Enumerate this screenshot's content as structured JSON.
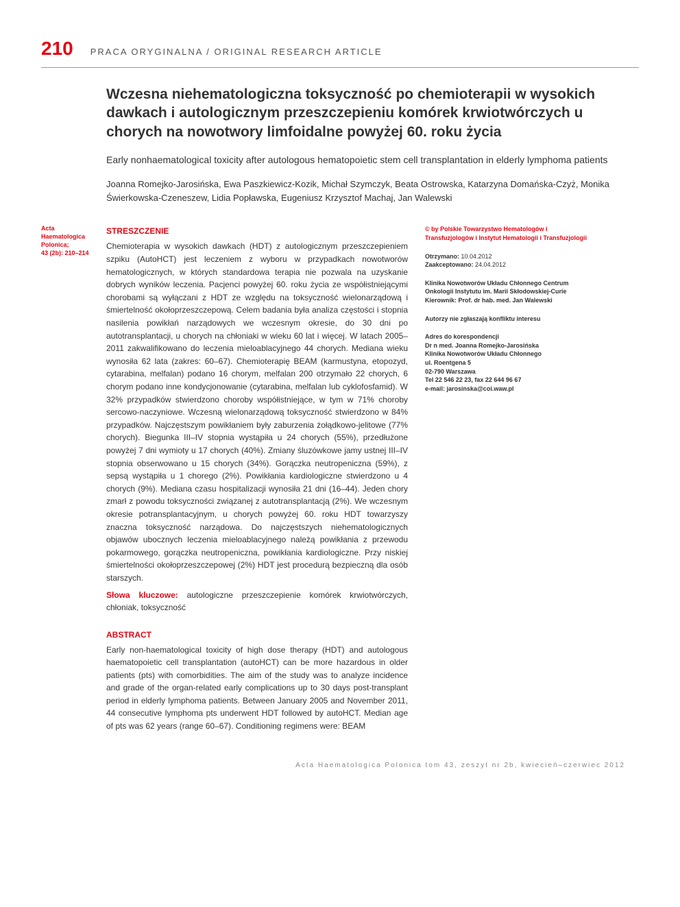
{
  "header": {
    "page_number": "210",
    "category": "PRACA ORYGINALNA / ORIGINAL RESEARCH ARTICLE"
  },
  "title_block": {
    "title": "Wczesna niehematologiczna toksyczność po chemioterapii w wysokich dawkach i autologicznym przeszczepieniu komórek krwiotwórczych u chorych na nowotwory limfoidalne powyżej 60. roku życia",
    "subtitle": "Early nonhaematological toxicity after autologous hematopoietic stem cell transplantation in elderly lymphoma patients",
    "authors": "Joanna Romejko-Jarosińska, Ewa Paszkiewicz-Kozik, Michał Szymczyk, Beata Ostrowska, Katarzyna Domańska-Czyż, Monika Świerkowska-Czeneszew, Lidia Popławska, Eugeniusz Krzysztof Machaj, Jan Walewski"
  },
  "left_meta": {
    "journal": "Acta Haematologica Polonica;",
    "ref": "43 (2b): 210–214"
  },
  "streszczenie": {
    "heading": "STRESZCZENIE",
    "body": "Chemioterapia w wysokich dawkach (HDT) z autologicznym przeszczepieniem szpiku (AutoHCT) jest leczeniem z wyboru w przypadkach nowotworów hematologicznych, w których standardowa terapia nie pozwala na uzyskanie dobrych wyników leczenia. Pacjenci powyżej 60. roku życia ze współistniejącymi chorobami są wyłączani z HDT ze względu na toksyczność wielonarządową i śmiertelność okołoprzeszczepową. Celem badania była analiza częstości i stopnia nasilenia powikłań narządowych we wczesnym okresie, do 30 dni po autotransplantacji, u chorych na chłoniaki w wieku 60 lat i więcej. W latach 2005–2011 zakwalifikowano do leczenia mieloablacyjnego 44 chorych. Mediana wieku wynosiła 62 lata (zakres: 60–67). Chemioterapię BEAM (karmustyna, etopozyd, cytarabina, melfalan) podano 16 chorym, melfalan 200 otrzymało 22 chorych, 6 chorym podano inne kondycjonowanie (cytarabina, melfalan lub cyklofosfamid). W 32% przypadków stwierdzono choroby współistniejące, w tym w 71% choroby sercowo-naczyniowe. Wczesną wielonarządową toksyczność stwierdzono w 84% przypadków. Najczęstszym powikłaniem były zaburzenia żołądkowo-jelitowe (77% chorych). Biegunka III–IV stopnia wystąpiła u 24 chorych (55%), przedłużone powyżej 7 dni wymioty u 17 chorych (40%). Zmiany śluzówkowe jamy ustnej III–IV stopnia obserwowano u 15 chorych (34%). Gorączka neutropeniczna (59%), z sepsą wystąpiła u 1 chorego (2%). Powikłania kardiologiczne stwierdzono u 4 chorych (9%). Mediana czasu hospitalizacji wynosiła 21 dni (16–44). Jeden chory zmarł z powodu toksyczności związanej z autotransplantacją (2%). We wczesnym okresie potransplantacyjnym, u chorych powyżej 60. roku HDT towarzyszy znaczna toksyczność narządowa. Do najczęstszych niehematologicznych objawów ubocznych leczenia mieloablacyjnego należą powikłania z przewodu pokarmowego, gorączka neutropeniczna, powikłania kardiologiczne. Przy niskiej śmiertelności okołoprzeszczepowej (2%) HDT jest procedurą bezpieczną dla osób starszych.",
    "keywords_label": "Słowa kluczowe:",
    "keywords": " autologiczne przeszczepienie komórek krwiotwórczych, chłoniak, toksyczność"
  },
  "abstract": {
    "heading": "ABSTRACT",
    "body": "Early non-haematological toxicity of high dose therapy (HDT) and autologous haematopoietic cell transplantation (autoHCT) can be more hazardous in older patients (pts) with comorbidities. The aim of the study was to analyze incidence and grade of the organ-related early complications up to 30 days post-transplant period in elderly lymphoma patients. Between January 2005 and November 2011, 44 consecutive lymphoma pts underwent HDT followed by autoHCT. Median age of pts was 62 years (range 60–67). Conditioning regimens were: BEAM"
  },
  "right": {
    "copyright": "© by Polskie Towarzystwo Hematologów i Transfuzjologów i Instytut Hematologii i Transfuzjologii",
    "received_label": "Otrzymano:",
    "received": " 10.04.2012",
    "accepted_label": "Zaakceptowano:",
    "accepted": " 24.04.2012",
    "affiliation": "Klinika Nowotworów Układu Chłonnego Centrum Onkologii Instytutu im. Marii Skłodowskiej-Curie",
    "affiliation_head_label": "Kierownik:",
    "affiliation_head": " Prof. dr hab. med. Jan Walewski",
    "coi": "Autorzy nie zgłaszają konfliktu interesu",
    "address_label": "Adres do korespondencji",
    "address_name": "Dr n med. Joanna Romejko-Jarosińska",
    "address_dept": "Klinika Nowotworów Układu Chłonnego",
    "address_street": "ul. Roentgena 5",
    "address_city": "02-790 Warszawa",
    "address_phone": "Tel 22 546 22 23, fax 22 644 96 67",
    "address_email": "e-mail: jarosinska@coi.waw.pl"
  },
  "footer": "Acta Haematologica Polonica tom 43, zeszyt nr 2b, kwiecień–czerwiec 2012",
  "colors": {
    "accent": "#e30613",
    "text": "#333333",
    "muted": "#888888"
  }
}
